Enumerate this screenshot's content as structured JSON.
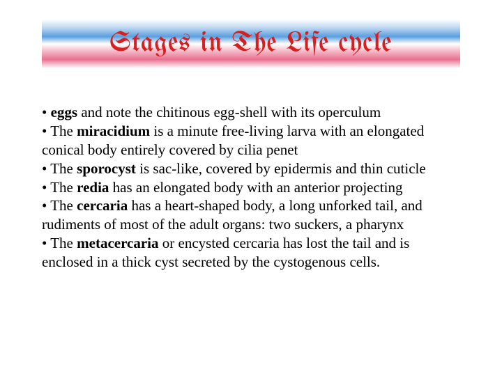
{
  "title": {
    "text": "Stages in The Life cycle",
    "color": "#d62020",
    "fontsize": 40,
    "banner_gradient": [
      "#ffffff",
      "#b8d4f0",
      "#5a9fe0",
      "#ffffff",
      "#f5b8c8",
      "#e87090",
      "#ffffff"
    ]
  },
  "bullets": [
    {
      "bold": "eggs",
      "rest": " and note the chitinous egg-shell with its operculum"
    },
    {
      "prefix": "The ",
      "bold": "miracidium",
      "rest": " is a minute free-living larva with an elongated conical body entirely covered by cilia penet"
    },
    {
      "prefix": "The ",
      "bold": "sporocyst",
      "rest": " is sac-like, covered by epidermis and thin cuticle"
    },
    {
      "prefix": "The ",
      "bold": "redia",
      "rest": " has an elongated body with an anterior projecting"
    },
    {
      "prefix": "The ",
      "bold": "cercaria",
      "rest": " has a heart-shaped body, a long unforked tail, and rudiments of most of the adult organs: two suckers, a pharynx"
    },
    {
      "prefix": "The ",
      "bold": "metacercaria",
      "rest": " or encysted cercaria has lost the tail and is enclosed in a thick cyst secreted by the cystogenous cells."
    }
  ],
  "styling": {
    "body_fontsize": 21,
    "body_color": "#000000",
    "background_color": "#ffffff",
    "bullet_char": "•"
  }
}
